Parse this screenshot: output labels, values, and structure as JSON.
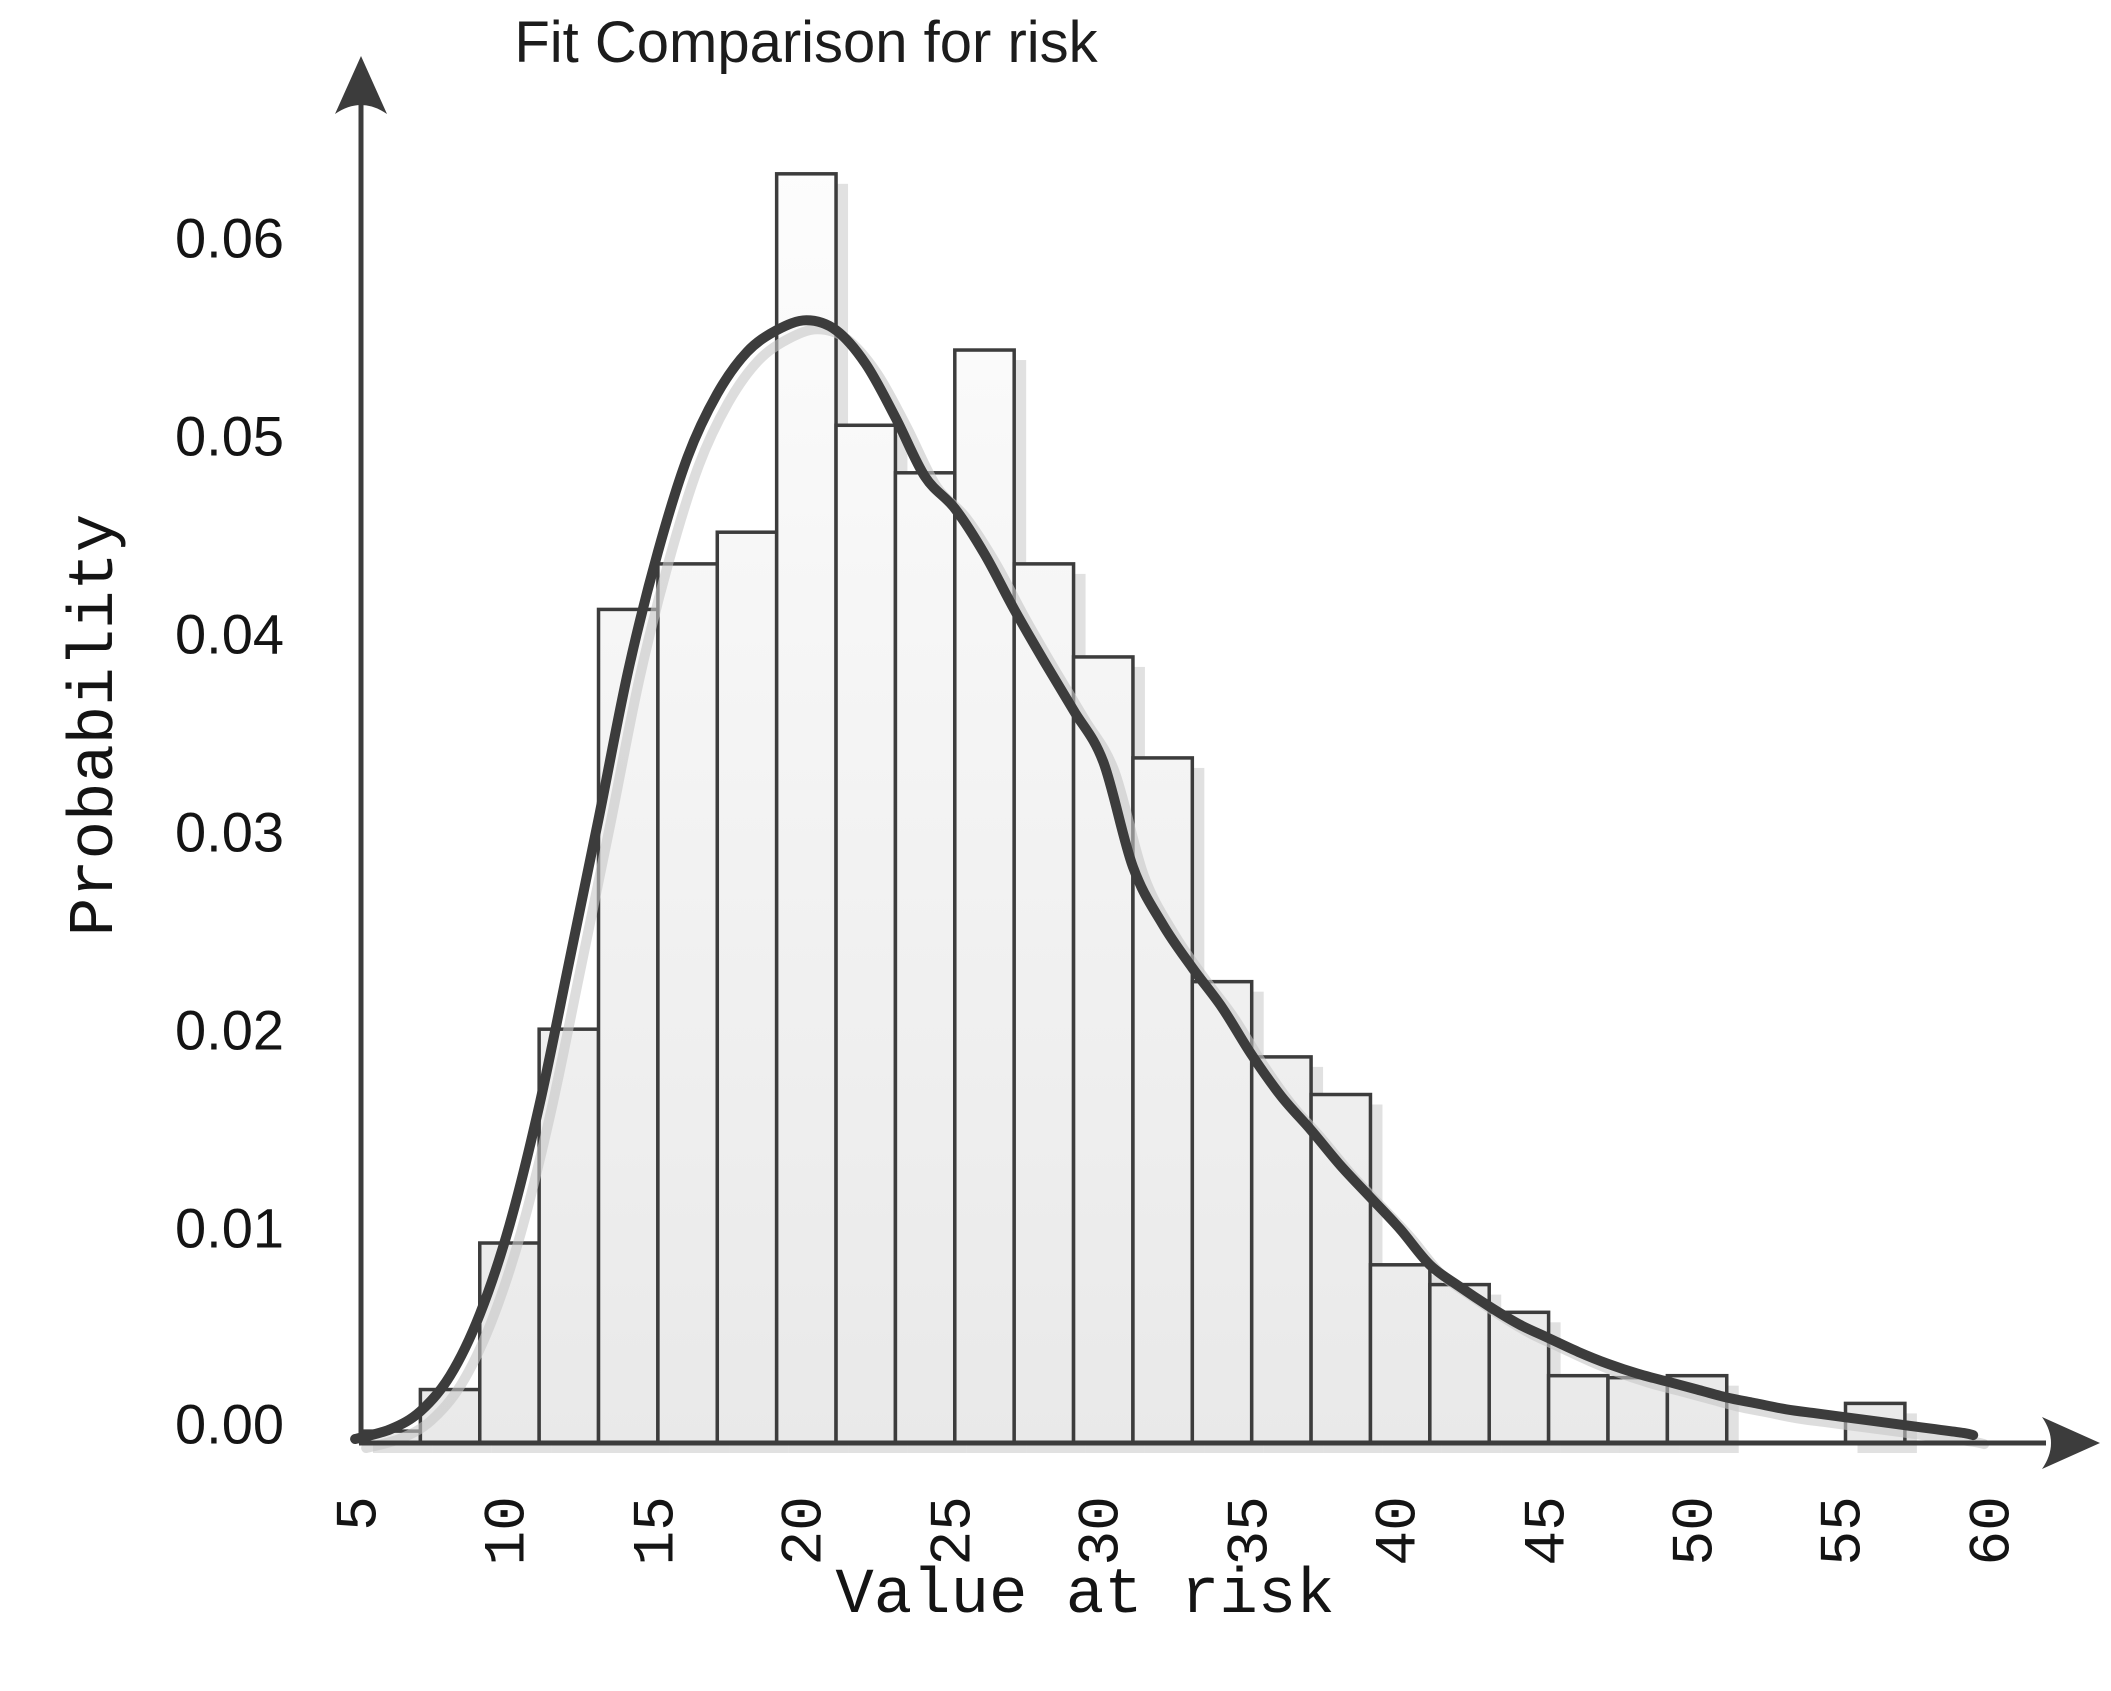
{
  "title": "Fit Comparison for risk",
  "chart_data": {
    "type": "bar",
    "subtype": "histogram_with_fit_curve",
    "title": "Fit Comparison for risk",
    "xlabel": "Value at risk",
    "ylabel": "Probability",
    "xlim": [
      5,
      60
    ],
    "ylim": [
      0,
      0.065
    ],
    "grid": "off",
    "legend": "none",
    "xticks": [
      "5",
      "10",
      "15",
      "20",
      "25",
      "30",
      "35",
      "40",
      "45",
      "50",
      "55",
      "60"
    ],
    "yticks": [
      "0.06",
      "0.05",
      "0.04",
      "0.03",
      "0.02",
      "0.01",
      "0.00"
    ],
    "bins": {
      "start": 5,
      "width": 2,
      "values": [
        0.0006,
        0.0027,
        0.0101,
        0.0209,
        0.0421,
        0.0444,
        0.046,
        0.0641,
        0.0514,
        0.049,
        0.0552,
        0.0444,
        0.0397,
        0.0346,
        0.0233,
        0.0195,
        0.0176,
        0.009,
        0.008,
        0.0066,
        0.0034,
        0.0033,
        0.0034,
        0.0,
        0.0,
        0.002
      ]
    },
    "fit_curve": {
      "x": [
        4.8,
        6,
        7,
        8,
        9,
        10,
        11,
        12,
        13,
        14,
        15,
        16,
        17,
        18,
        19,
        20,
        21,
        22,
        23,
        24,
        25,
        26,
        27,
        28,
        29,
        30,
        31,
        32,
        33,
        34,
        35,
        36,
        37,
        38,
        39,
        40,
        41,
        42,
        43,
        44,
        45,
        46,
        47,
        48,
        49,
        50,
        51,
        52,
        53,
        54,
        55,
        56,
        57,
        58,
        59,
        59.3
      ],
      "y": [
        0.0002,
        0.0007,
        0.0016,
        0.0034,
        0.0065,
        0.011,
        0.017,
        0.0242,
        0.0315,
        0.039,
        0.045,
        0.0498,
        0.053,
        0.0551,
        0.0562,
        0.0567,
        0.0562,
        0.0545,
        0.0518,
        0.0488,
        0.0472,
        0.0449,
        0.0421,
        0.0395,
        0.037,
        0.0344,
        0.0291,
        0.0262,
        0.024,
        0.022,
        0.0196,
        0.0175,
        0.0158,
        0.014,
        0.0124,
        0.0108,
        0.009,
        0.0079,
        0.0069,
        0.006,
        0.0053,
        0.0046,
        0.004,
        0.0035,
        0.0031,
        0.0027,
        0.0023,
        0.002,
        0.0017,
        0.0015,
        0.0013,
        0.0011,
        0.0009,
        0.0007,
        0.0005,
        0.0004
      ]
    }
  },
  "colors": {
    "ink": "#3c3c3c",
    "text": "#141414",
    "bar_fill_top": "#fdfdfd",
    "bar_fill_bottom": "#e9e9e9",
    "shadow": "#c9c9c9",
    "background": "#ffffff"
  }
}
